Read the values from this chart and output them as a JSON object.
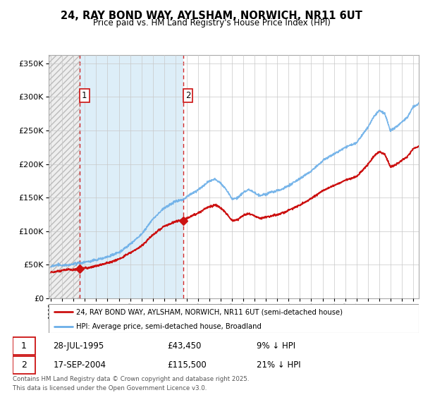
{
  "title1": "24, RAY BOND WAY, AYLSHAM, NORWICH, NR11 6UT",
  "title2": "Price paid vs. HM Land Registry's House Price Index (HPI)",
  "legend_line1": "24, RAY BOND WAY, AYLSHAM, NORWICH, NR11 6UT (semi-detached house)",
  "legend_line2": "HPI: Average price, semi-detached house, Broadland",
  "sale1_date": "28-JUL-1995",
  "sale1_price": "£43,450",
  "sale1_hpi": "9% ↓ HPI",
  "sale2_date": "17-SEP-2004",
  "sale2_price": "£115,500",
  "sale2_hpi": "21% ↓ HPI",
  "footnote": "Contains HM Land Registry data © Crown copyright and database right 2025.\nThis data is licensed under the Open Government Licence v3.0.",
  "hpi_color": "#6aaee8",
  "price_color": "#cc1111",
  "sale_marker_color": "#cc1111",
  "sale1_year": 1995.57,
  "sale2_year": 2004.72,
  "sale1_value": 43450,
  "sale2_value": 115500,
  "ylim_max": 362000,
  "ylim_min": 0,
  "xlim_min": 1992.8,
  "xlim_max": 2025.5,
  "hatch_color": "#d8d8d8",
  "light_blue_bg": "#ddeeff",
  "grid_color": "#c8c8c8"
}
